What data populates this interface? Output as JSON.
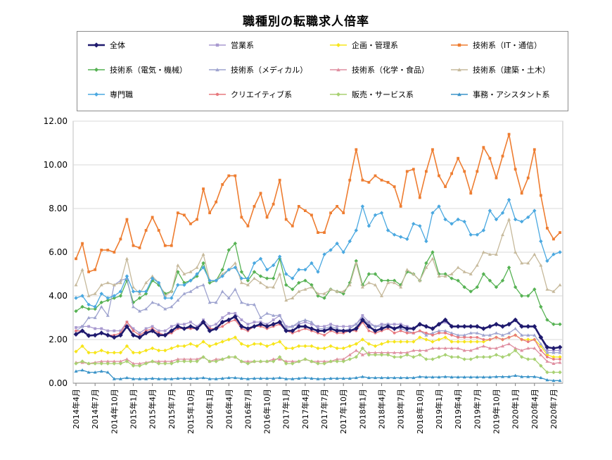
{
  "chart_data": {
    "type": "line",
    "title": "職種別の転職求人倍率",
    "xlabel": "",
    "ylabel": "",
    "ylim": [
      0,
      12
    ],
    "yticks": [
      "0.00",
      "2.00",
      "4.00",
      "6.00",
      "8.00",
      "10.00",
      "12.00"
    ],
    "grid": true,
    "legend_position": "top",
    "x": [
      "2014年4月",
      "2014年5月",
      "2014年6月",
      "2014年7月",
      "2014年8月",
      "2014年9月",
      "2014年10月",
      "2014年11月",
      "2014年12月",
      "2015年1月",
      "2015年2月",
      "2015年3月",
      "2015年4月",
      "2015年5月",
      "2015年6月",
      "2015年7月",
      "2015年8月",
      "2015年9月",
      "2015年10月",
      "2015年11月",
      "2015年12月",
      "2016年1月",
      "2016年2月",
      "2016年3月",
      "2016年4月",
      "2016年5月",
      "2016年6月",
      "2016年7月",
      "2016年8月",
      "2016年9月",
      "2016年10月",
      "2016年11月",
      "2016年12月",
      "2017年1月",
      "2017年2月",
      "2017年3月",
      "2017年4月",
      "2017年5月",
      "2017年6月",
      "2017年7月",
      "2017年8月",
      "2017年9月",
      "2017年10月",
      "2017年11月",
      "2017年12月",
      "2018年1月",
      "2018年2月",
      "2018年3月",
      "2018年4月",
      "2018年5月",
      "2018年6月",
      "2018年7月",
      "2018年8月",
      "2018年9月",
      "2018年10月",
      "2018年11月",
      "2018年12月",
      "2019年1月",
      "2019年2月",
      "2019年3月",
      "2019年4月",
      "2019年5月",
      "2019年6月",
      "2019年7月",
      "2019年8月",
      "2019年9月",
      "2019年10月",
      "2019年11月",
      "2019年12月",
      "2020年1月",
      "2020年2月",
      "2020年3月",
      "2020年4月",
      "2020年5月",
      "2020年6月",
      "2020年7月",
      "2020年8月"
    ],
    "xtick_labels": [
      "2014年4月",
      "2014年7月",
      "2014年10月",
      "2015年1月",
      "2015年4月",
      "2015年7月",
      "2015年10月",
      "2016年1月",
      "2016年4月",
      "2016年7月",
      "2016年10月",
      "2017年1月",
      "2017年4月",
      "2017年7月",
      "2017年10月",
      "2018年1月",
      "2018年4月",
      "2018年7月",
      "2018年10月",
      "2019年1月",
      "2019年4月",
      "2019年7月",
      "2019年10月",
      "2020年1月",
      "2020年4月",
      "2020年7月"
    ],
    "series": [
      {
        "name": "全体",
        "color": "#1f1a6e",
        "marker": "diamond",
        "width": 2.6,
        "values": [
          2.24,
          2.4,
          2.18,
          2.2,
          2.3,
          2.2,
          2.1,
          2.2,
          2.6,
          2.2,
          2.1,
          2.3,
          2.4,
          2.2,
          2.2,
          2.4,
          2.6,
          2.5,
          2.6,
          2.5,
          2.8,
          2.4,
          2.5,
          2.8,
          2.9,
          3.05,
          2.6,
          2.5,
          2.6,
          2.7,
          2.6,
          2.7,
          2.8,
          2.4,
          2.4,
          2.6,
          2.6,
          2.5,
          2.4,
          2.4,
          2.5,
          2.4,
          2.4,
          2.4,
          2.5,
          2.9,
          2.6,
          2.4,
          2.5,
          2.6,
          2.5,
          2.6,
          2.5,
          2.5,
          2.7,
          2.6,
          2.5,
          2.7,
          2.9,
          2.6,
          2.6,
          2.6,
          2.6,
          2.6,
          2.5,
          2.6,
          2.7,
          2.6,
          2.7,
          2.9,
          2.6,
          2.6,
          2.6,
          2.1,
          1.65,
          1.6,
          1.65
        ]
      },
      {
        "name": "営業系",
        "color": "#a99ad0",
        "marker": "square",
        "width": 1.3,
        "values": [
          2.55,
          2.6,
          2.6,
          2.5,
          2.5,
          2.4,
          2.4,
          2.4,
          2.8,
          2.5,
          2.3,
          2.5,
          2.6,
          2.4,
          2.4,
          2.6,
          2.7,
          2.7,
          2.8,
          2.6,
          2.9,
          2.6,
          2.7,
          3.0,
          3.2,
          3.2,
          2.9,
          2.7,
          2.8,
          2.8,
          2.7,
          2.9,
          3.1,
          2.6,
          2.6,
          2.7,
          2.8,
          2.7,
          2.6,
          2.6,
          2.7,
          2.6,
          2.6,
          2.6,
          2.7,
          3.1,
          2.8,
          2.6,
          2.7,
          2.7,
          2.7,
          2.7,
          2.6,
          2.5,
          2.7,
          2.6,
          2.5,
          2.7,
          2.8,
          2.6,
          2.6,
          2.6,
          2.6,
          2.6,
          2.5,
          2.6,
          2.7,
          2.6,
          2.7,
          2.9,
          2.6,
          2.6,
          2.6,
          2.1,
          1.5,
          1.5,
          1.5
        ]
      },
      {
        "name": "企画・管理系",
        "color": "#f7e51a",
        "marker": "diamond",
        "width": 1.3,
        "values": [
          1.45,
          1.7,
          1.4,
          1.4,
          1.5,
          1.4,
          1.4,
          1.4,
          1.7,
          1.4,
          1.4,
          1.5,
          1.6,
          1.5,
          1.5,
          1.6,
          1.7,
          1.7,
          1.8,
          1.7,
          1.9,
          1.7,
          1.8,
          1.9,
          2.0,
          2.1,
          1.8,
          1.7,
          1.8,
          1.8,
          1.7,
          1.8,
          1.9,
          1.6,
          1.6,
          1.7,
          1.7,
          1.7,
          1.6,
          1.6,
          1.7,
          1.6,
          1.6,
          1.7,
          1.8,
          2.0,
          1.8,
          1.7,
          1.8,
          1.9,
          1.9,
          1.9,
          1.9,
          1.9,
          2.1,
          2.0,
          1.9,
          2.0,
          2.1,
          1.9,
          1.9,
          1.9,
          1.9,
          1.9,
          1.9,
          2.0,
          2.1,
          2.0,
          2.1,
          2.2,
          2.0,
          2.0,
          2.0,
          1.7,
          1.3,
          1.2,
          1.2
        ]
      },
      {
        "name": "技術系（IT・通信）",
        "color": "#ee7d31",
        "marker": "square",
        "width": 1.6,
        "values": [
          5.7,
          6.4,
          5.1,
          5.2,
          6.1,
          6.1,
          6.0,
          6.6,
          7.5,
          6.3,
          6.2,
          7.0,
          7.6,
          7.0,
          6.3,
          6.3,
          7.8,
          7.7,
          7.3,
          7.5,
          8.9,
          7.8,
          8.3,
          9.1,
          9.5,
          9.5,
          7.6,
          7.2,
          8.1,
          8.7,
          7.6,
          8.2,
          9.3,
          7.5,
          7.2,
          8.1,
          7.9,
          7.7,
          6.9,
          6.9,
          7.8,
          8.1,
          7.8,
          9.3,
          10.7,
          9.3,
          9.2,
          9.5,
          9.3,
          9.2,
          9.0,
          8.1,
          9.7,
          9.8,
          8.5,
          9.7,
          10.7,
          9.5,
          9.0,
          9.6,
          10.3,
          9.7,
          8.7,
          9.7,
          10.8,
          10.3,
          9.4,
          10.4,
          11.4,
          9.8,
          8.7,
          9.4,
          10.7,
          8.6,
          7.1,
          6.6,
          6.9
        ]
      },
      {
        "name": "技術系（電気・機械）",
        "color": "#56b253",
        "marker": "diamond",
        "width": 1.3,
        "values": [
          3.3,
          3.5,
          3.4,
          3.4,
          3.7,
          3.8,
          3.9,
          4.0,
          4.7,
          3.7,
          3.9,
          4.1,
          4.7,
          4.5,
          4.1,
          4.2,
          5.1,
          4.6,
          4.7,
          4.9,
          5.5,
          4.6,
          4.7,
          5.2,
          6.1,
          6.4,
          5.1,
          4.7,
          5.1,
          4.9,
          4.8,
          4.8,
          5.7,
          4.5,
          4.3,
          4.6,
          4.7,
          4.5,
          4.0,
          3.9,
          4.3,
          4.2,
          4.1,
          4.6,
          5.6,
          4.5,
          5.0,
          5.0,
          4.7,
          4.7,
          4.7,
          4.5,
          5.1,
          5.0,
          4.7,
          5.5,
          6.0,
          5.0,
          5.0,
          4.8,
          4.7,
          4.4,
          4.2,
          4.4,
          5.0,
          4.7,
          4.4,
          4.7,
          5.3,
          4.4,
          4.0,
          4.0,
          4.3,
          3.5,
          2.9,
          2.7,
          2.7
        ]
      },
      {
        "name": "技術系（メディカル）",
        "color": "#9ea3cf",
        "marker": "triangle",
        "width": 1.3,
        "values": [
          2.4,
          2.6,
          3.0,
          3.0,
          3.5,
          3.1,
          4.5,
          4.7,
          4.8,
          3.5,
          3.3,
          3.4,
          3.7,
          3.6,
          3.4,
          3.5,
          3.8,
          4.1,
          4.2,
          4.4,
          4.5,
          3.7,
          3.7,
          4.2,
          3.9,
          4.3,
          3.7,
          3.6,
          3.6,
          3.0,
          3.2,
          3.1,
          3.1,
          2.5,
          2.6,
          2.8,
          2.9,
          2.8,
          2.5,
          2.5,
          2.6,
          2.5,
          2.4,
          2.5,
          2.7,
          3.0,
          2.7,
          2.6,
          2.6,
          2.7,
          2.5,
          2.5,
          2.4,
          2.3,
          2.4,
          2.2,
          2.3,
          2.4,
          2.4,
          2.3,
          2.2,
          2.2,
          2.3,
          2.3,
          2.2,
          2.2,
          2.3,
          2.2,
          2.3,
          2.5,
          2.2,
          2.2,
          2.2,
          1.8,
          1.4,
          1.4,
          1.4
        ]
      },
      {
        "name": "技術系（化学・食品）",
        "color": "#df8ea0",
        "marker": "triangle",
        "width": 1.3,
        "values": [
          0.95,
          0.95,
          0.9,
          0.95,
          1.0,
          1.0,
          1.0,
          1.0,
          1.1,
          0.9,
          0.9,
          0.95,
          1.0,
          1.0,
          1.0,
          1.0,
          1.1,
          1.1,
          1.1,
          1.1,
          1.2,
          1.0,
          1.1,
          1.1,
          1.2,
          1.2,
          1.0,
          1.0,
          1.0,
          1.0,
          1.0,
          1.1,
          1.1,
          1.0,
          1.0,
          1.0,
          1.1,
          1.0,
          1.0,
          1.0,
          1.0,
          1.1,
          1.1,
          1.3,
          1.5,
          1.3,
          1.4,
          1.4,
          1.4,
          1.4,
          1.4,
          1.4,
          1.4,
          1.5,
          1.5,
          1.5,
          1.6,
          1.6,
          1.6,
          1.6,
          1.6,
          1.5,
          1.5,
          1.6,
          1.7,
          1.6,
          1.6,
          1.7,
          1.8,
          1.6,
          1.5,
          1.6,
          1.6,
          1.3,
          1.0,
          0.9,
          0.95
        ]
      },
      {
        "name": "技術系（建築・土木）",
        "color": "#c6b99b",
        "marker": "triangle",
        "width": 1.3,
        "values": [
          4.5,
          5.2,
          4.0,
          4.1,
          4.5,
          4.6,
          4.5,
          4.6,
          5.7,
          4.4,
          4.1,
          4.6,
          4.9,
          4.6,
          4.0,
          4.2,
          5.4,
          5.0,
          5.1,
          5.3,
          5.9,
          4.7,
          4.7,
          5.0,
          5.2,
          5.5,
          4.6,
          4.5,
          4.8,
          4.6,
          4.4,
          4.4,
          5.0,
          3.8,
          3.9,
          4.2,
          4.3,
          4.4,
          4.1,
          4.1,
          4.3,
          4.2,
          4.2,
          4.5,
          5.5,
          4.4,
          4.6,
          4.5,
          4.0,
          4.6,
          4.6,
          4.4,
          5.2,
          5.0,
          4.7,
          5.3,
          5.7,
          4.9,
          4.9,
          5.0,
          5.3,
          5.1,
          5.0,
          5.4,
          6.0,
          5.9,
          5.9,
          6.8,
          7.5,
          6.0,
          5.5,
          5.5,
          5.9,
          5.4,
          4.3,
          4.2,
          4.5
        ]
      },
      {
        "name": "専門職",
        "color": "#4aa8e0",
        "marker": "diamond",
        "width": 1.3,
        "values": [
          3.9,
          4.0,
          3.6,
          3.5,
          4.1,
          3.9,
          4.0,
          4.2,
          4.9,
          4.2,
          4.2,
          4.2,
          4.8,
          4.6,
          3.9,
          3.9,
          4.5,
          4.5,
          4.7,
          5.0,
          5.3,
          4.7,
          4.7,
          4.9,
          5.2,
          5.3,
          4.8,
          4.8,
          5.5,
          5.7,
          5.2,
          5.4,
          5.8,
          5.0,
          4.8,
          5.2,
          5.2,
          5.5,
          5.1,
          5.9,
          6.1,
          6.4,
          6.0,
          6.5,
          7.0,
          8.1,
          7.2,
          7.7,
          7.8,
          7.0,
          6.8,
          6.7,
          6.6,
          7.3,
          7.2,
          6.5,
          7.8,
          8.1,
          7.5,
          7.3,
          7.5,
          7.4,
          6.8,
          6.8,
          7.0,
          7.9,
          7.5,
          7.8,
          8.4,
          7.5,
          7.4,
          7.6,
          7.9,
          6.5,
          5.6,
          5.9,
          6.0
        ]
      },
      {
        "name": "クリエイティブ系",
        "color": "#e7797e",
        "marker": "circle",
        "width": 1.3,
        "values": [
          2.4,
          2.4,
          2.2,
          2.2,
          2.3,
          2.2,
          2.2,
          2.3,
          2.8,
          2.4,
          2.2,
          2.4,
          2.5,
          2.3,
          2.2,
          2.3,
          2.5,
          2.5,
          2.5,
          2.5,
          2.8,
          2.5,
          2.5,
          2.6,
          2.8,
          2.9,
          2.5,
          2.4,
          2.6,
          2.6,
          2.5,
          2.6,
          2.7,
          2.4,
          2.3,
          2.4,
          2.5,
          2.4,
          2.3,
          2.2,
          2.4,
          2.3,
          2.3,
          2.4,
          2.4,
          2.8,
          2.4,
          2.3,
          2.4,
          2.5,
          2.3,
          2.4,
          2.3,
          2.3,
          2.4,
          2.3,
          2.2,
          2.3,
          2.3,
          2.2,
          2.1,
          2.1,
          2.1,
          2.1,
          2.0,
          2.0,
          2.1,
          2.0,
          2.1,
          2.2,
          2.0,
          1.9,
          2.0,
          1.5,
          1.2,
          1.1,
          1.1
        ]
      },
      {
        "name": "販売・サービス系",
        "color": "#a8d172",
        "marker": "diamond",
        "width": 1.3,
        "values": [
          0.9,
          1.0,
          0.9,
          0.9,
          0.9,
          0.9,
          0.9,
          0.9,
          1.0,
          0.8,
          0.8,
          0.9,
          1.0,
          0.9,
          0.9,
          0.9,
          1.0,
          1.0,
          1.0,
          1.0,
          1.2,
          1.0,
          1.0,
          1.1,
          1.2,
          1.2,
          1.0,
          0.9,
          1.0,
          1.0,
          1.0,
          1.0,
          1.2,
          0.9,
          0.9,
          1.0,
          1.1,
          1.0,
          0.9,
          0.9,
          1.0,
          1.0,
          1.0,
          1.1,
          1.2,
          1.6,
          1.3,
          1.3,
          1.3,
          1.3,
          1.2,
          1.2,
          1.3,
          1.2,
          1.3,
          1.1,
          1.1,
          1.2,
          1.3,
          1.2,
          1.2,
          1.1,
          1.1,
          1.2,
          1.2,
          1.2,
          1.3,
          1.2,
          1.3,
          1.5,
          1.2,
          1.1,
          1.1,
          0.8,
          0.5,
          0.5,
          0.5
        ]
      },
      {
        "name": "事務・アシスタント系",
        "color": "#3a93c8",
        "marker": "triangle",
        "width": 1.3,
        "values": [
          0.55,
          0.6,
          0.5,
          0.5,
          0.55,
          0.5,
          0.2,
          0.2,
          0.25,
          0.2,
          0.2,
          0.2,
          0.22,
          0.2,
          0.2,
          0.2,
          0.22,
          0.22,
          0.22,
          0.22,
          0.25,
          0.2,
          0.2,
          0.22,
          0.25,
          0.25,
          0.22,
          0.2,
          0.22,
          0.22,
          0.22,
          0.22,
          0.25,
          0.2,
          0.2,
          0.22,
          0.25,
          0.22,
          0.2,
          0.2,
          0.22,
          0.22,
          0.22,
          0.22,
          0.25,
          0.3,
          0.25,
          0.25,
          0.25,
          0.25,
          0.25,
          0.25,
          0.25,
          0.25,
          0.3,
          0.28,
          0.28,
          0.28,
          0.3,
          0.28,
          0.28,
          0.28,
          0.28,
          0.28,
          0.28,
          0.28,
          0.3,
          0.3,
          0.3,
          0.35,
          0.3,
          0.3,
          0.3,
          0.25,
          0.15,
          0.12,
          0.12
        ]
      }
    ]
  }
}
